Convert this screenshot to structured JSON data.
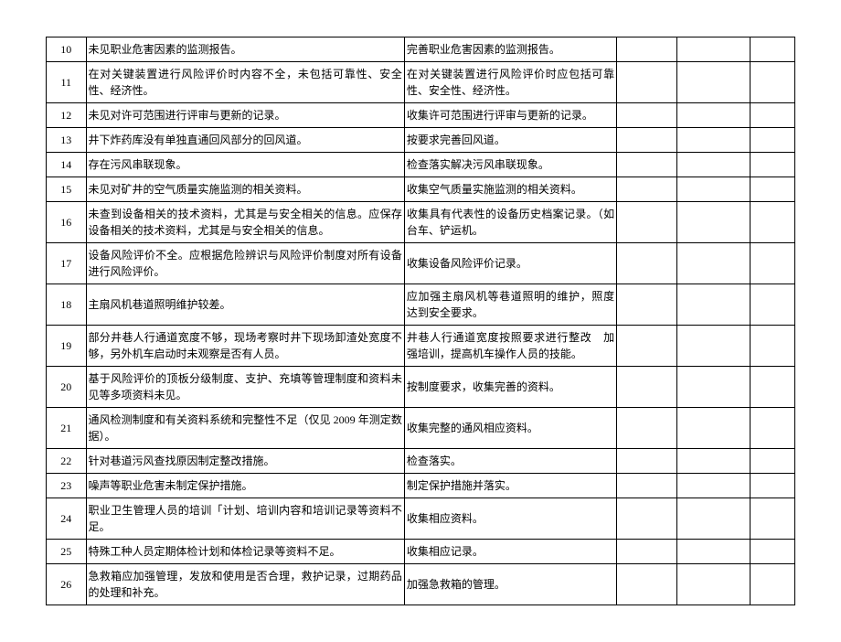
{
  "rows": [
    {
      "num": "10",
      "issue": "未见职业危害因素的监测报告。",
      "action": "完善职业危害因素的监测报告。"
    },
    {
      "num": "11",
      "issue": "在对关键装置进行风险评价时内容不全，未包括可靠性、安全性、经济性。",
      "action": "在对关键装置进行风险评价时应包括可靠性、安全性、经济性。"
    },
    {
      "num": "12",
      "issue": "未见对许可范围进行评审与更新的记录。",
      "action": "收集许可范围进行评审与更新的记录。"
    },
    {
      "num": "13",
      "issue": "井下炸药库没有单独直通回风部分的回风道。",
      "action": "按要求完善回风道。"
    },
    {
      "num": "14",
      "issue": "存在污风串联现象。",
      "action": "检查落实解决污风串联现象。"
    },
    {
      "num": "15",
      "issue": "未见对矿井的空气质量实施监测的相关资料。",
      "action": "收集空气质量实施监测的相关资料。"
    },
    {
      "num": "16",
      "issue": "未查到设备相关的技术资料，尤其是与安全相关的信息。应保存设备相关的技术资料，尤其是与安全相关的信息。",
      "action": "收集具有代表性的设备历史档案记录。（如台车、铲运机。"
    },
    {
      "num": "17",
      "issue": "设备风险评价不全。应根据危险辨识与风险评价制度对所有设备进行风险评价。",
      "action": "收集设备风险评价记录。"
    },
    {
      "num": "18",
      "issue": "主扇风机巷道照明维护较差。",
      "action": "应加强主扇风机等巷道照明的维护，照度达到安全要求。"
    },
    {
      "num": "19",
      "issue": "部分井巷人行通道宽度不够，现场考察时井下现场卸渣处宽度不够，另外机车启动时未观察是否有人员。",
      "action": "井巷人行通道宽度按照要求进行整改　加强培训，提高机车操作人员的技能。"
    },
    {
      "num": "20",
      "issue": "基于风险评价的顶板分级制度、支护、充填等管理制度和资料未见等多项资料未见。",
      "action": "按制度要求，收集完善的资料。"
    },
    {
      "num": "21",
      "issue": "通风检测制度和有关资料系统和完整性不足（仅见 2009 年测定数据）。",
      "action": "收集完整的通风相应资料。"
    },
    {
      "num": "22",
      "issue": "针对巷道污风查找原因制定整改措施。",
      "action": "检查落实。"
    },
    {
      "num": "23",
      "issue": "噪声等职业危害未制定保护措施。",
      "action": "制定保护措施并落实。"
    },
    {
      "num": "24",
      "issue": "职业卫生管理人员的培训「计划、培训内容和培训记录等资料不足。",
      "action": "收集相应资料。"
    },
    {
      "num": "25",
      "issue": "特殊工种人员定期体检计划和体检记录等资料不足。",
      "action": "收集相应记录。"
    },
    {
      "num": "26",
      "issue": "急救箱应加强管理，发放和使用是否合理，救护记录，过期药品的处理和补充。",
      "action": "加强急救箱的管理。"
    }
  ]
}
